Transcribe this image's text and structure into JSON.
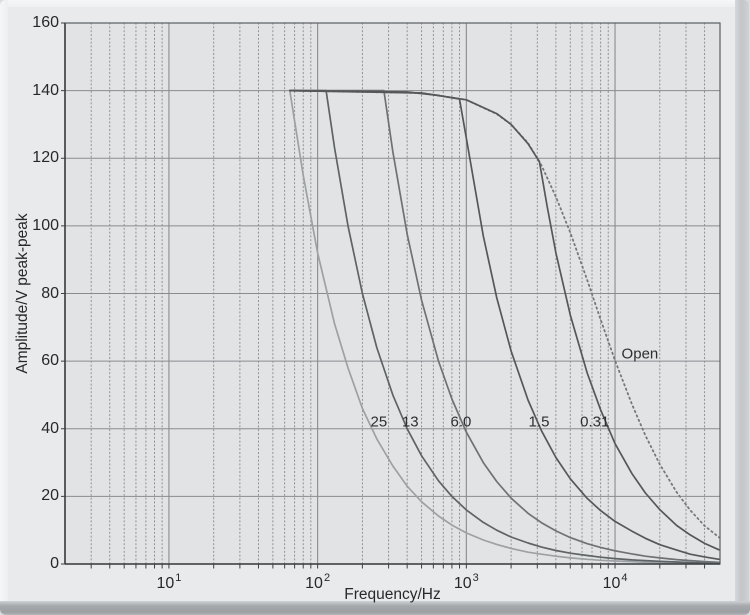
{
  "chart_data": {
    "type": "line",
    "title": "",
    "xlabel": "Frequency/Hz",
    "ylabel": "Amplitude/V peak-peak",
    "x_scale": "log",
    "xlim": [
      2,
      50800
    ],
    "ylim": [
      0,
      160
    ],
    "y_ticks": [
      0,
      20,
      40,
      60,
      80,
      100,
      120,
      140,
      160
    ],
    "x_major_ticks": [
      {
        "value": 10,
        "base": "10",
        "exp": "1"
      },
      {
        "value": 100,
        "base": "10",
        "exp": "2"
      },
      {
        "value": 1000,
        "base": "10",
        "exp": "3"
      },
      {
        "value": 10000,
        "base": "10",
        "exp": "4"
      }
    ],
    "grid": {
      "major_solid": true,
      "log_minor_dotted": true
    },
    "legend_position": "inline-annotations",
    "series": [
      {
        "name": "load-25",
        "label": "25",
        "style": "solid",
        "color": "#9da1a4",
        "points": [
          [
            65,
            140
          ],
          [
            80,
            115
          ],
          [
            100,
            92
          ],
          [
            130,
            71
          ],
          [
            160,
            58
          ],
          [
            200,
            46
          ],
          [
            250,
            37
          ],
          [
            320,
            29
          ],
          [
            400,
            23
          ],
          [
            500,
            18.4
          ],
          [
            650,
            14.2
          ],
          [
            800,
            11.5
          ],
          [
            1000,
            9.2
          ],
          [
            1300,
            7.1
          ],
          [
            1600,
            5.8
          ],
          [
            2000,
            4.6
          ],
          [
            2600,
            3.5
          ],
          [
            3200,
            2.9
          ],
          [
            4000,
            2.3
          ],
          [
            5000,
            1.8
          ],
          [
            6500,
            1.4
          ],
          [
            8000,
            1.1
          ],
          [
            10000,
            0.9
          ],
          [
            13000,
            0.7
          ],
          [
            16000,
            0.5
          ],
          [
            20000,
            0.4
          ],
          [
            26000,
            0.3
          ],
          [
            32000,
            0.2
          ],
          [
            40000,
            0.15
          ],
          [
            50000,
            0.1
          ]
        ]
      },
      {
        "name": "load-13",
        "label": "13",
        "style": "solid",
        "color": "#5e6366",
        "points": [
          [
            65,
            140
          ],
          [
            114,
            140
          ],
          [
            130,
            123
          ],
          [
            160,
            100
          ],
          [
            200,
            80
          ],
          [
            250,
            64
          ],
          [
            320,
            50
          ],
          [
            400,
            40
          ],
          [
            500,
            32
          ],
          [
            650,
            24.6
          ],
          [
            800,
            20
          ],
          [
            1000,
            16
          ],
          [
            1300,
            12.3
          ],
          [
            1600,
            10
          ],
          [
            2000,
            8
          ],
          [
            2600,
            6.2
          ],
          [
            3200,
            5
          ],
          [
            4000,
            4
          ],
          [
            5000,
            3.2
          ],
          [
            6500,
            2.5
          ],
          [
            8000,
            2
          ],
          [
            10000,
            1.6
          ],
          [
            13000,
            1.2
          ],
          [
            16000,
            1
          ],
          [
            20000,
            0.8
          ],
          [
            26000,
            0.6
          ],
          [
            32000,
            0.4
          ],
          [
            40000,
            0.3
          ],
          [
            50000,
            0.2
          ]
        ]
      },
      {
        "name": "load-6-0",
        "label": "6.0",
        "style": "solid",
        "color": "#6e7275",
        "points": [
          [
            65,
            140
          ],
          [
            279,
            140
          ],
          [
            320,
            122
          ],
          [
            400,
            97.5
          ],
          [
            500,
            78
          ],
          [
            650,
            60
          ],
          [
            800,
            48.8
          ],
          [
            1000,
            39
          ],
          [
            1300,
            30
          ],
          [
            1600,
            24.4
          ],
          [
            2000,
            19.5
          ],
          [
            2600,
            15
          ],
          [
            3200,
            12.2
          ],
          [
            4000,
            9.8
          ],
          [
            5000,
            7.8
          ],
          [
            6500,
            6
          ],
          [
            8000,
            4.9
          ],
          [
            10000,
            3.9
          ],
          [
            13000,
            3
          ],
          [
            16000,
            2.3
          ],
          [
            20000,
            1.8
          ],
          [
            26000,
            1.3
          ],
          [
            32000,
            1
          ],
          [
            40000,
            0.7
          ],
          [
            50000,
            0.5
          ]
        ]
      },
      {
        "name": "load-1-5",
        "label": "1.5",
        "style": "solid",
        "color": "#54585b",
        "points": [
          [
            65,
            140
          ],
          [
            400,
            139.6
          ],
          [
            650,
            138.6
          ],
          [
            900,
            137.5
          ],
          [
            1000,
            126
          ],
          [
            1300,
            97
          ],
          [
            1600,
            78.8
          ],
          [
            2000,
            63
          ],
          [
            2600,
            48.5
          ],
          [
            3200,
            39.4
          ],
          [
            4000,
            31.5
          ],
          [
            5000,
            25.2
          ],
          [
            6500,
            19.4
          ],
          [
            8000,
            15.8
          ],
          [
            10000,
            12.6
          ],
          [
            13000,
            9.7
          ],
          [
            16000,
            7.6
          ],
          [
            20000,
            5.7
          ],
          [
            26000,
            4.1
          ],
          [
            32000,
            2.9
          ],
          [
            40000,
            2.1
          ],
          [
            50000,
            1.4
          ]
        ]
      },
      {
        "name": "load-0-31",
        "label": "0.31",
        "style": "solid",
        "color": "#54585b",
        "points": [
          [
            65,
            140
          ],
          [
            500,
            139.3
          ],
          [
            1000,
            137.3
          ],
          [
            1600,
            133.2
          ],
          [
            2000,
            130
          ],
          [
            2600,
            124.3
          ],
          [
            3100,
            119
          ],
          [
            3500,
            105.7
          ],
          [
            4000,
            92
          ],
          [
            5000,
            73.6
          ],
          [
            6500,
            56.5
          ],
          [
            8000,
            45.6
          ],
          [
            10000,
            35.6
          ],
          [
            13000,
            26.7
          ],
          [
            16000,
            21
          ],
          [
            20000,
            16.1
          ],
          [
            26000,
            11.4
          ],
          [
            32000,
            8.6
          ],
          [
            40000,
            6.1
          ],
          [
            50000,
            4.2
          ]
        ]
      },
      {
        "name": "open-load",
        "label": "Open",
        "style": "dotted",
        "color": "#74787b",
        "points": [
          [
            65,
            140
          ],
          [
            500,
            139.3
          ],
          [
            1000,
            137.3
          ],
          [
            1600,
            133.1
          ],
          [
            2000,
            130
          ],
          [
            2600,
            124.5
          ],
          [
            3200,
            117.9
          ],
          [
            4000,
            108.6
          ],
          [
            5000,
            98
          ],
          [
            6500,
            84
          ],
          [
            8000,
            72.3
          ],
          [
            10000,
            60.2
          ],
          [
            13000,
            47.2
          ],
          [
            16000,
            38
          ],
          [
            20000,
            29.5
          ],
          [
            26000,
            21.2
          ],
          [
            32000,
            15.9
          ],
          [
            40000,
            11.3
          ],
          [
            50000,
            7.9
          ]
        ]
      }
    ],
    "annotations": [
      {
        "text": "25",
        "f": 258,
        "v": 42
      },
      {
        "text": "13",
        "f": 420,
        "v": 42
      },
      {
        "text": "6.0",
        "f": 920,
        "v": 42
      },
      {
        "text": "1.5",
        "f": 3080,
        "v": 42
      },
      {
        "text": "0.31",
        "f": 7300,
        "v": 42
      },
      {
        "text": "Open",
        "f": 14700,
        "v": 62
      }
    ]
  },
  "colors": {
    "panel_bg": "#e9eaec",
    "plot_bg": "#e2e3e5",
    "grid_major": "#898c8f",
    "grid_minor": "#8d9093",
    "frame": "#5a5e61",
    "axis": "#3c4043",
    "text": "#26292c"
  }
}
